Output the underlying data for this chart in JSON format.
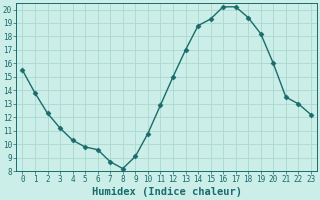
{
  "x": [
    0,
    1,
    2,
    3,
    4,
    5,
    6,
    7,
    8,
    9,
    10,
    11,
    12,
    13,
    14,
    15,
    16,
    17,
    18,
    19,
    20,
    21,
    22,
    23
  ],
  "y": [
    15.5,
    13.8,
    12.3,
    11.2,
    10.3,
    9.8,
    9.6,
    8.7,
    8.2,
    9.1,
    10.8,
    12.9,
    15.0,
    17.0,
    18.8,
    19.3,
    20.2,
    20.2,
    19.4,
    18.2,
    16.0,
    13.5,
    13.0,
    12.2
  ],
  "xlabel": "Humidex (Indice chaleur)",
  "bg_color": "#cceee8",
  "line_color": "#1a6b6b",
  "marker_color": "#1a6b6b",
  "grid_color": "#aad8d0",
  "text_color": "#1a6b6b",
  "ylim": [
    8,
    20.5
  ],
  "yticks": [
    8,
    9,
    10,
    11,
    12,
    13,
    14,
    15,
    16,
    17,
    18,
    19,
    20
  ],
  "xlim": [
    -0.5,
    23.5
  ],
  "xticks": [
    0,
    1,
    2,
    3,
    4,
    5,
    6,
    7,
    8,
    9,
    10,
    11,
    12,
    13,
    14,
    15,
    16,
    17,
    18,
    19,
    20,
    21,
    22,
    23
  ],
  "tick_fontsize": 5.5,
  "label_fontsize": 7.5
}
